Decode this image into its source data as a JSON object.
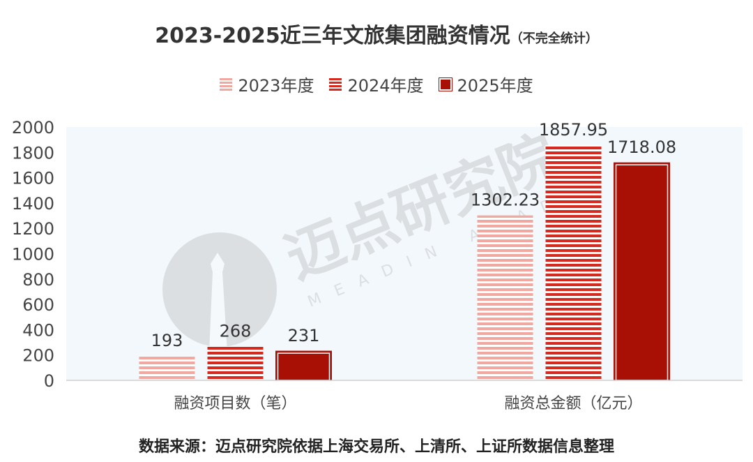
{
  "title": "2023-2025近三年文旅集团融资情况",
  "subtitle": "（不完全统计）",
  "source": "数据来源：迈点研究院依据上海交易所、上清所、上证所数据信息整理",
  "watermark": {
    "cn": "迈点研究院",
    "en": "MEADIN ACADEMY"
  },
  "chart_data": {
    "type": "bar",
    "categories": [
      "融资项目数（笔）",
      "融资总金额（亿元）"
    ],
    "series": [
      {
        "name": "2023年度",
        "values": [
          193,
          1302.23
        ],
        "labels": [
          "193",
          "1302.23"
        ],
        "color": "#f0a8a0",
        "pattern": "light-stripes"
      },
      {
        "name": "2024年度",
        "values": [
          268,
          1857.95
        ],
        "labels": [
          "268",
          "1857.95"
        ],
        "color": "#d42a20",
        "pattern": "stripes"
      },
      {
        "name": "2025年度",
        "values": [
          231,
          1718.08
        ],
        "labels": [
          "231",
          "1718.08"
        ],
        "color": "#a80f05",
        "pattern": "solid"
      }
    ],
    "ylim": [
      0,
      2000
    ],
    "yticks": [
      "0",
      "200",
      "400",
      "600",
      "800",
      "1000",
      "1200",
      "1400",
      "1600",
      "1800",
      "2000"
    ],
    "legend_position": "top"
  }
}
